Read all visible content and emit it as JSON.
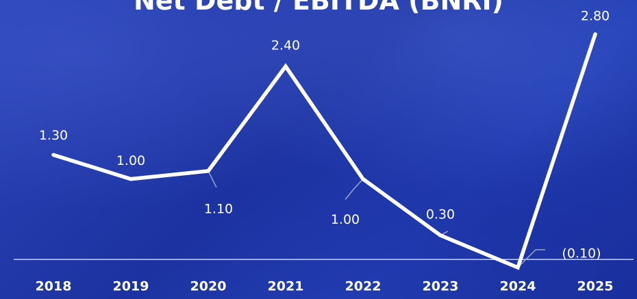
{
  "chart_data": {
    "type": "line",
    "title": "Net Debt / EBITDA (BNRI)",
    "categories": [
      "2018",
      "2019",
      "2020",
      "2021",
      "2022",
      "2023",
      "2024",
      "2025"
    ],
    "series": [
      {
        "values": [
          1.3,
          1.0,
          1.1,
          2.4,
          1.0,
          0.3,
          -0.1,
          2.8
        ],
        "labels": [
          "1.30",
          "1.00",
          "1.10",
          "2.40",
          "1.00",
          "0.30",
          "(0.10)",
          "2.80"
        ]
      }
    ],
    "ylim": [
      -0.1,
      2.8
    ],
    "grid": false,
    "legend": "none"
  },
  "colors": {
    "background": "#1f36a8",
    "line": "#ffffff",
    "baseline": "#c8d2f5",
    "leader": "#9aa6c8"
  }
}
